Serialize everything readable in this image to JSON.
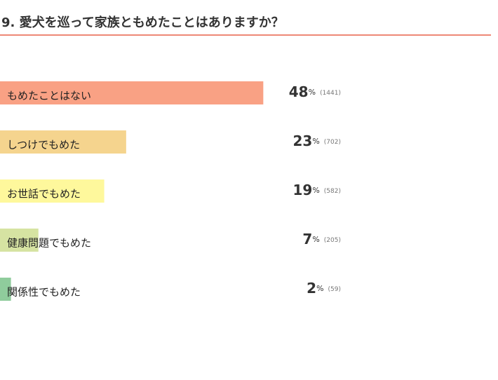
{
  "chart_data": {
    "type": "bar",
    "orientation": "horizontal",
    "title": "9. 愛犬を巡って家族ともめたことはありますか？",
    "categories": [
      "もめたことはない",
      "しつけでもめた",
      "お世話でもめた",
      "健康問題でもめた",
      "関係性でもめた"
    ],
    "values": [
      48,
      23,
      19,
      7,
      2
    ],
    "unit": "%",
    "counts": [
      1441,
      702,
      582,
      205,
      59
    ],
    "count_labels": [
      "(1441)",
      "(702)",
      "(582)",
      "(205)",
      "(59)"
    ],
    "colors": [
      "#f9a184",
      "#f5d48e",
      "#fef89c",
      "#d6e3a2",
      "#8fcc9c"
    ]
  }
}
